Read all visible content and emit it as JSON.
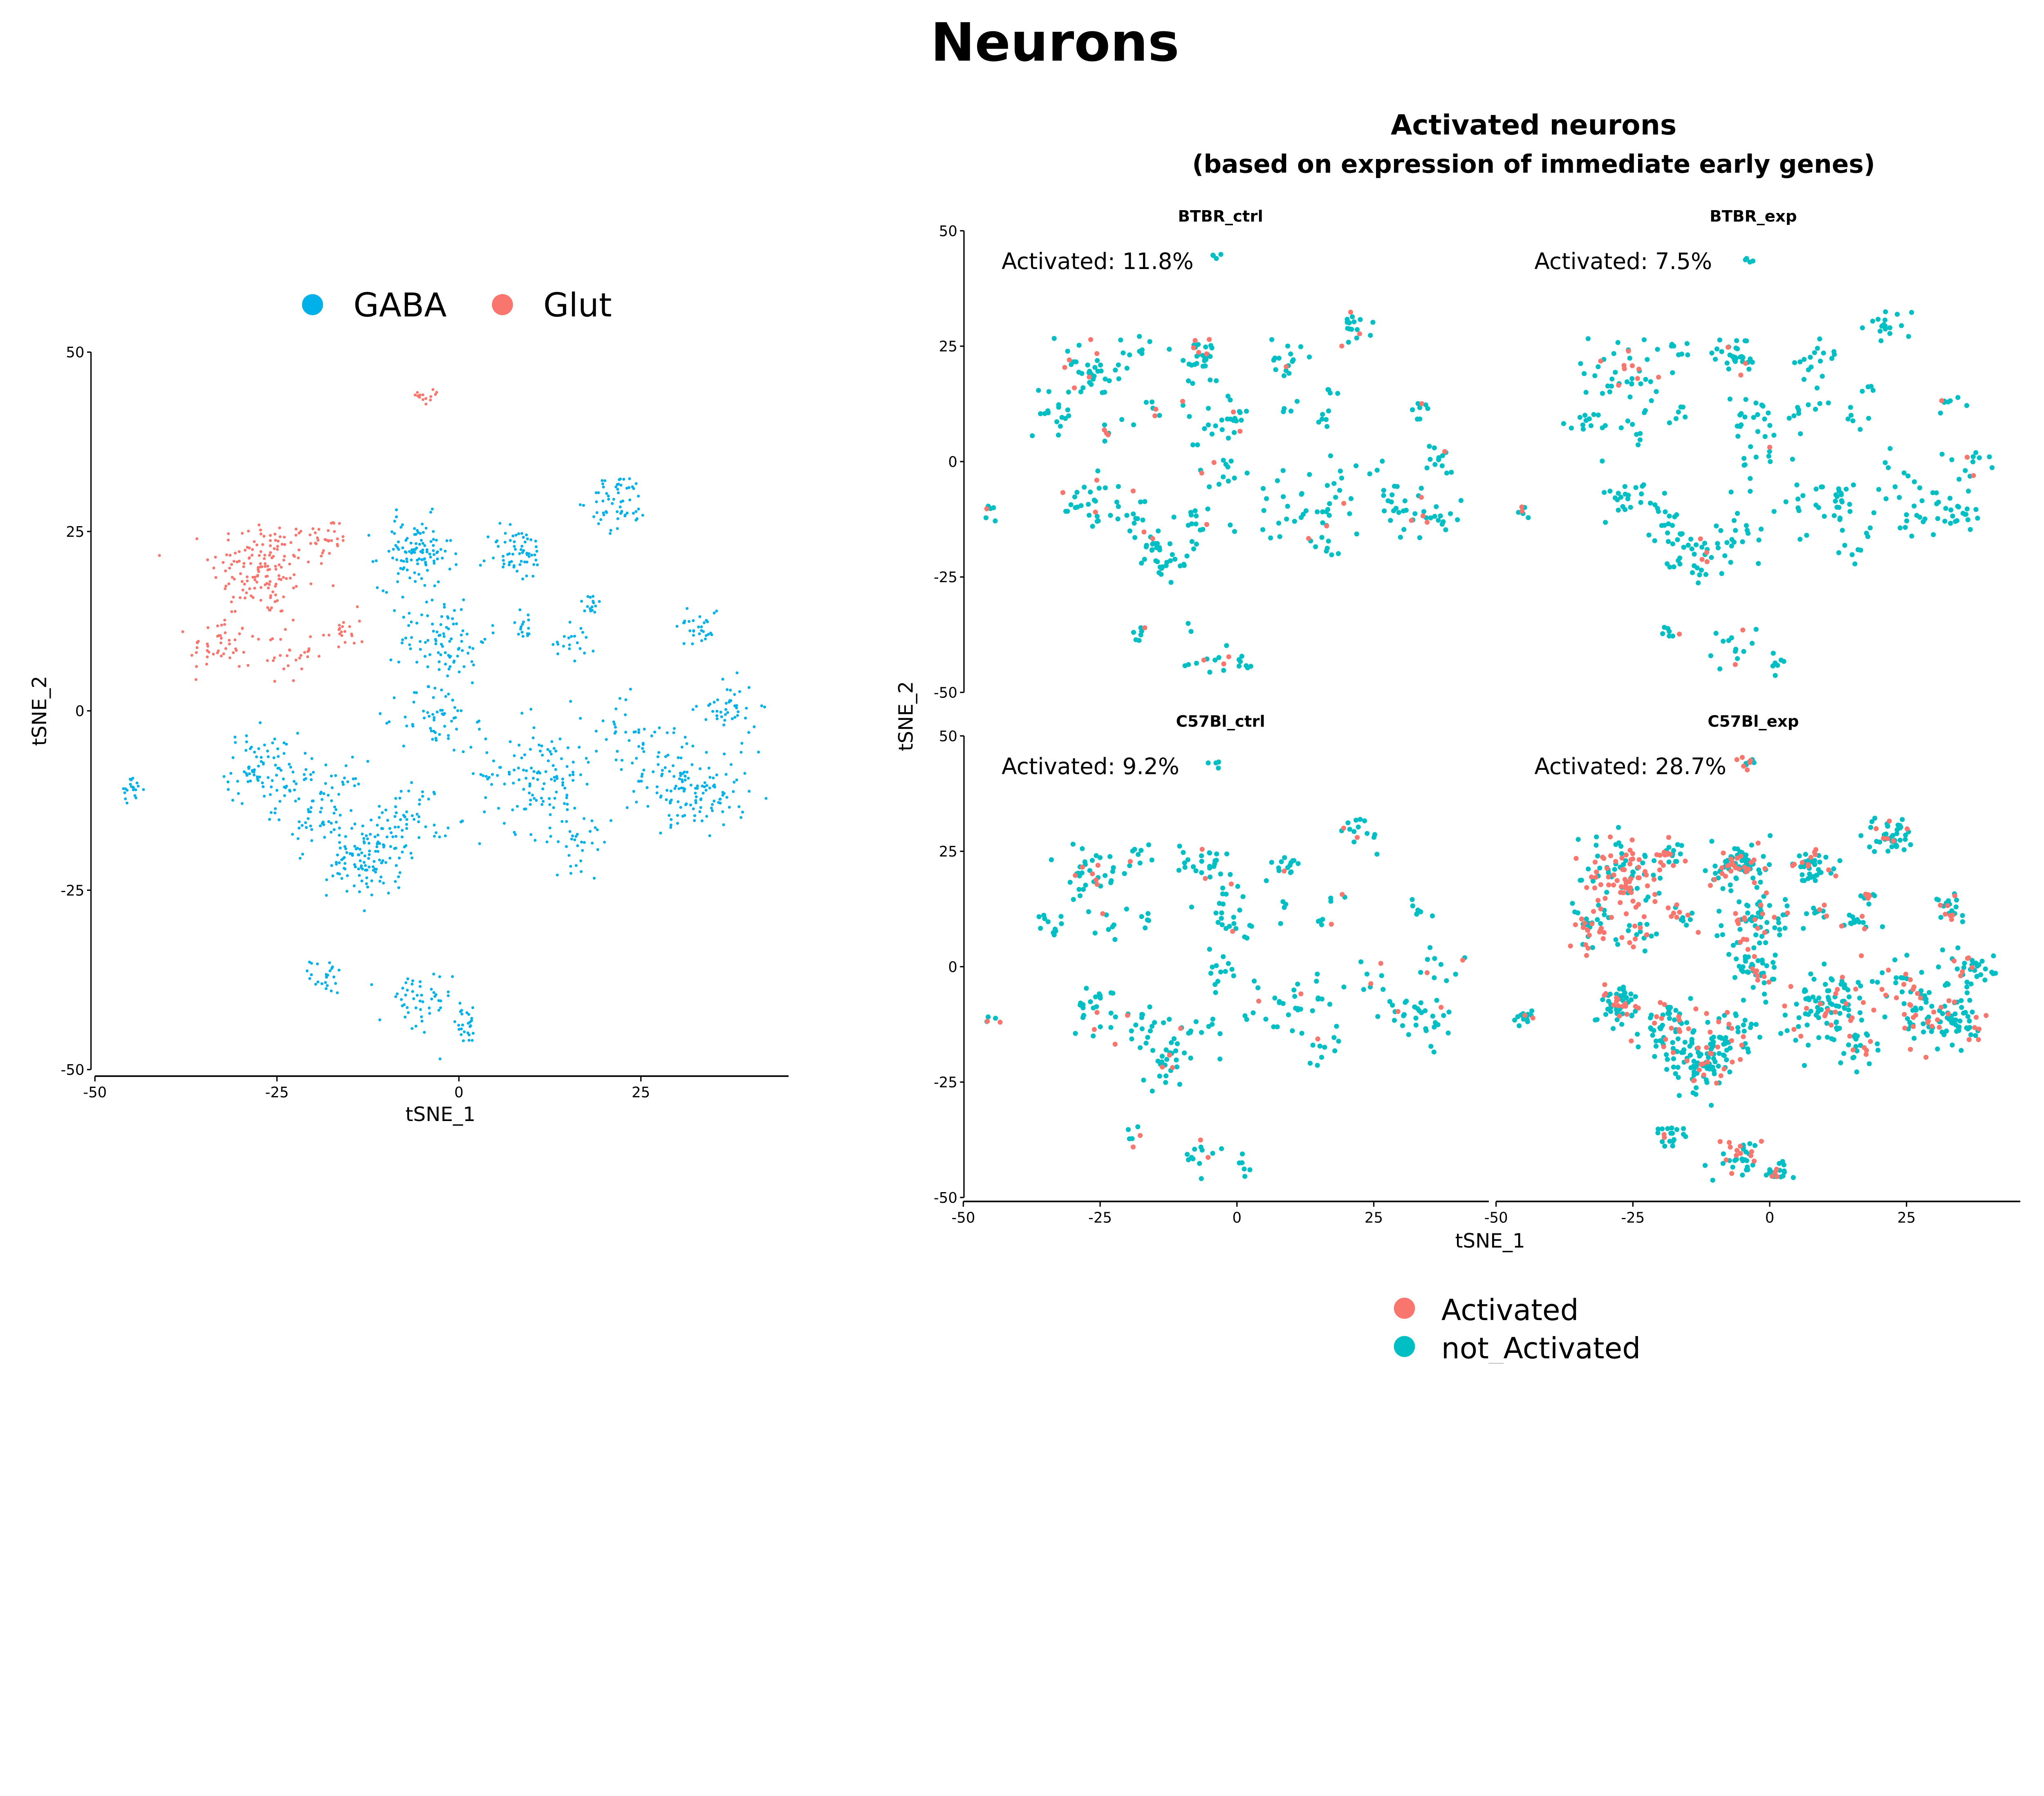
{
  "title": "Neurons",
  "colors": {
    "GABA": "#00B0E8",
    "Glut": "#F8766D",
    "Activated": "#F8766D",
    "not_Activated": "#00BFC4",
    "axis": "#000000"
  },
  "chart_data": [
    {
      "type": "scatter",
      "title": "",
      "xlabel": "tSNE_1",
      "ylabel": "tSNE_2",
      "xlim": [
        -50,
        45
      ],
      "ylim": [
        -50,
        50
      ],
      "xticks": [
        "-50",
        "-25",
        "0",
        "25"
      ],
      "yticks": [
        "50",
        "25",
        "0",
        "-25",
        "-50"
      ],
      "legend": {
        "placement": "top",
        "entries": [
          "GABA",
          "Glut"
        ]
      },
      "clusters": [
        {
          "group": "Glut",
          "x": -27,
          "y": 20,
          "sd": 3.5,
          "n": 150
        },
        {
          "group": "Glut",
          "x": -18,
          "y": 24,
          "sd": 1.5,
          "n": 30
        },
        {
          "group": "Glut",
          "x": -33,
          "y": 9,
          "sd": 2,
          "n": 45
        },
        {
          "group": "Glut",
          "x": -24,
          "y": 8,
          "sd": 2,
          "n": 30
        },
        {
          "group": "Glut",
          "x": -16,
          "y": 11,
          "sd": 1.5,
          "n": 20
        },
        {
          "group": "Glut",
          "x": -4,
          "y": 44,
          "sd": 0.8,
          "n": 15
        },
        {
          "group": "GABA",
          "x": -45,
          "y": -11,
          "sd": 0.8,
          "n": 20
        },
        {
          "group": "GABA",
          "x": -27,
          "y": -8,
          "sd": 2.5,
          "n": 80
        },
        {
          "group": "GABA",
          "x": -19,
          "y": -13,
          "sd": 3,
          "n": 80
        },
        {
          "group": "GABA",
          "x": -13,
          "y": -21,
          "sd": 2.5,
          "n": 110
        },
        {
          "group": "GABA",
          "x": -7,
          "y": -15,
          "sd": 2.5,
          "n": 60
        },
        {
          "group": "GABA",
          "x": -18,
          "y": -37,
          "sd": 1.2,
          "n": 25
        },
        {
          "group": "GABA",
          "x": -6,
          "y": -41,
          "sd": 2.5,
          "n": 50
        },
        {
          "group": "GABA",
          "x": 1,
          "y": -44,
          "sd": 1.2,
          "n": 25
        },
        {
          "group": "GABA",
          "x": -6,
          "y": 22,
          "sd": 2.5,
          "n": 110
        },
        {
          "group": "GABA",
          "x": -2,
          "y": 10,
          "sd": 3,
          "n": 90
        },
        {
          "group": "GABA",
          "x": -3,
          "y": -1,
          "sd": 2.5,
          "n": 55
        },
        {
          "group": "GABA",
          "x": 8,
          "y": 22,
          "sd": 2,
          "n": 60
        },
        {
          "group": "GABA",
          "x": 9,
          "y": 12,
          "sd": 1,
          "n": 15
        },
        {
          "group": "GABA",
          "x": 22,
          "y": 29,
          "sd": 2,
          "n": 60
        },
        {
          "group": "GABA",
          "x": 18,
          "y": 15,
          "sd": 0.8,
          "n": 15
        },
        {
          "group": "GABA",
          "x": 16,
          "y": 10,
          "sd": 1.5,
          "n": 20
        },
        {
          "group": "GABA",
          "x": 11,
          "y": -9,
          "sd": 4,
          "n": 130
        },
        {
          "group": "GABA",
          "x": 17,
          "y": -18,
          "sd": 2,
          "n": 30
        },
        {
          "group": "GABA",
          "x": 23,
          "y": -3,
          "sd": 2.5,
          "n": 30
        },
        {
          "group": "GABA",
          "x": 29,
          "y": -10,
          "sd": 3,
          "n": 80
        },
        {
          "group": "GABA",
          "x": 33,
          "y": 12,
          "sd": 1.5,
          "n": 30
        },
        {
          "group": "GABA",
          "x": 37,
          "y": 0,
          "sd": 2,
          "n": 45
        },
        {
          "group": "GABA",
          "x": 35,
          "y": -12,
          "sd": 2.5,
          "n": 60
        }
      ]
    },
    {
      "type": "scatter",
      "title": "Activated neurons",
      "subtitle": "(based on expression of immediate early genes)",
      "xlabel": "tSNE_1",
      "ylabel": "tSNE_2",
      "xlim": [
        -50,
        45
      ],
      "ylim": [
        -50,
        50
      ],
      "xticks": [
        "-50",
        "-25",
        "0",
        "25"
      ],
      "yticks": [
        "50",
        "25",
        "0",
        "-25",
        "-50"
      ],
      "legend": {
        "placement": "bottom",
        "entries": [
          "Activated",
          "not_Activated"
        ]
      },
      "facets": [
        {
          "name": "BTBR_ctrl",
          "label": "Activated: 11.8%",
          "activated_pct": 11.8,
          "sample_fraction": 0.28
        },
        {
          "name": "BTBR_exp",
          "label": "Activated: 7.5%",
          "activated_pct": 7.5,
          "sample_fraction": 0.28
        },
        {
          "name": "C57Bl_ctrl",
          "label": "Activated: 9.2%",
          "activated_pct": 9.2,
          "sample_fraction": 0.25
        },
        {
          "name": "C57Bl_exp",
          "label": "Activated: 28.7%",
          "activated_pct": 28.7,
          "sample_fraction": 0.75
        }
      ]
    }
  ]
}
